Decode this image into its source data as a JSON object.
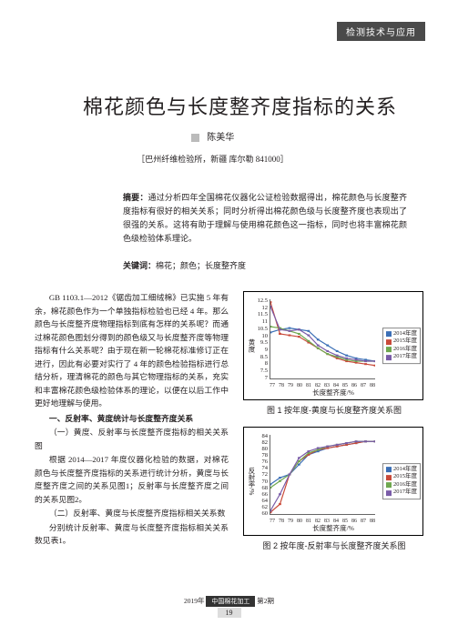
{
  "header_tag": "检测技术与应用",
  "title": "棉花颜色与长度整齐度指标的关系",
  "author": "陈美华",
  "affiliation": "［巴州纤维检验所，新疆  库尔勒  841000］",
  "abstract_label": "摘要：",
  "abstract_text": "通过分析四年全国棉花仪器化公证检验数据得出，棉花颜色与长度整齐度指标有很好的相关关系；同时分析得出棉花颜色级与长度整齐度也表现出了很强的关系。这将有助于理解与使用棉花颜色这一指标，同时也将丰富棉花颜色级检验体系理论。",
  "keywords_label": "关键词：",
  "keywords_text": "棉花；颜色；长度整齐度",
  "para1": "GB 1103.1—2012《锯齿加工细绒棉》已实施 5 年有余，棉花颜色作为一个单独指标检验也已经 4 年。那么颜色与长度整齐度物理指标到底有怎样的关系呢？而通过棉花颜色图划分得到的颜色级又与长度整齐度等物理指标有什么关系呢？由于现在新一轮棉花标准修订正在进行，因此有必要对实行了 4 年的颜色检验指标进行总结分析，理清棉花的颜色与其它物理指标的关系，充实和丰富棉花颜色级检验体系的理论，以便在以后工作中更好地理解与使用。",
  "h1": "一、反射率、黄度统计与长度整齐度关系",
  "para2": "（一）黄度、反射率与长度整齐度指标的相关关系图",
  "para3": "根据 2014—2017 年度仪器化检验的数据，对棉花颜色与长度整齐度指标的关系进行统计分析，黄度与长度整齐度之间的关系见图1；反射率与长度整齐度之间的关系见图2。",
  "para4": "（二）反射率、黄度与长度整齐度指标相关关系数",
  "para5": "分别统计反射率、黄度与长度整齐度指标相关关系数见表1。",
  "chart1": {
    "caption": "图 1  按年度-黄度与长度整齐度关系图",
    "ylabel": "黄度",
    "xlabel": "长度整齐度/%",
    "ylim": [
      7,
      12.5
    ],
    "yticks": [
      "12.5",
      "12",
      "11.5",
      "11",
      "10.5",
      "10",
      "9.5",
      "9",
      "8.5",
      "8",
      "7.5",
      "7"
    ],
    "xticks": [
      "77",
      "78",
      "79",
      "80",
      "81",
      "82",
      "83",
      "84",
      "85",
      "86",
      "87",
      "88"
    ],
    "legend": [
      "2014年度",
      "2015年度",
      "2016年度",
      "2017年度"
    ],
    "colors": [
      "#3b6fb6",
      "#c94a3a",
      "#6fa84f",
      "#7a5ca8"
    ],
    "series": {
      "2014": [
        [
          77,
          10.2
        ],
        [
          78,
          10.4
        ],
        [
          79,
          10.5
        ],
        [
          80,
          10.4
        ],
        [
          81,
          10.3
        ],
        [
          82,
          9.7
        ],
        [
          83,
          9.3
        ],
        [
          84,
          8.9
        ],
        [
          85,
          8.6
        ],
        [
          86,
          8.4
        ],
        [
          87,
          8.3
        ],
        [
          88,
          8.2
        ]
      ],
      "2015": [
        [
          77,
          12.3
        ],
        [
          78,
          10.1
        ],
        [
          79,
          10.0
        ],
        [
          80,
          9.9
        ],
        [
          81,
          9.5
        ],
        [
          82,
          9.1
        ],
        [
          83,
          8.7
        ],
        [
          84,
          8.4
        ],
        [
          85,
          8.2
        ],
        [
          86,
          8.1
        ],
        [
          87,
          8.0
        ],
        [
          88,
          7.9
        ]
      ],
      "2016": [
        [
          77,
          10.6
        ],
        [
          78,
          10.5
        ],
        [
          79,
          10.3
        ],
        [
          80,
          10.1
        ],
        [
          81,
          9.6
        ],
        [
          82,
          9.1
        ],
        [
          83,
          8.7
        ],
        [
          84,
          8.5
        ],
        [
          85,
          8.3
        ],
        [
          86,
          8.2
        ],
        [
          87,
          8.2
        ],
        [
          88,
          8.2
        ]
      ],
      "2017": [
        [
          77,
          12.0
        ],
        [
          78,
          10.4
        ],
        [
          79,
          10.3
        ],
        [
          80,
          10.4
        ],
        [
          81,
          10.0
        ],
        [
          82,
          9.3
        ],
        [
          83,
          8.9
        ],
        [
          84,
          8.6
        ],
        [
          85,
          8.4
        ],
        [
          86,
          8.3
        ],
        [
          87,
          8.2
        ],
        [
          88,
          8.2
        ]
      ]
    }
  },
  "chart2": {
    "caption": "图 2  按年度-反射率与长度整齐度关系图",
    "ylabel": "反射率/%",
    "xlabel": "长度整齐度/%",
    "ylim": [
      60,
      84
    ],
    "yticks": [
      "84",
      "82",
      "80",
      "78",
      "76",
      "74",
      "72",
      "70",
      "68",
      "66",
      "64",
      "62",
      "60"
    ],
    "xticks": [
      "77",
      "78",
      "79",
      "80",
      "81",
      "82",
      "83",
      "84",
      "85",
      "86",
      "87",
      "88"
    ],
    "legend": [
      "2014年度",
      "2015年度",
      "2016年度",
      "2017年度"
    ],
    "colors": [
      "#3b6fb6",
      "#c94a3a",
      "#6fa84f",
      "#7a5ca8"
    ],
    "series": {
      "2014": [
        [
          77,
          69
        ],
        [
          78,
          71
        ],
        [
          79,
          72
        ],
        [
          80,
          75
        ],
        [
          81,
          78
        ],
        [
          82,
          79
        ],
        [
          83,
          80
        ],
        [
          84,
          80.5
        ],
        [
          85,
          81
        ],
        [
          86,
          81.5
        ],
        [
          87,
          82
        ],
        [
          88,
          82
        ]
      ],
      "2015": [
        [
          77,
          60.5
        ],
        [
          78,
          63
        ],
        [
          79,
          72
        ],
        [
          80,
          76
        ],
        [
          81,
          78
        ],
        [
          82,
          79.5
        ],
        [
          83,
          80
        ],
        [
          84,
          80.5
        ],
        [
          85,
          81
        ],
        [
          86,
          81.5
        ],
        [
          87,
          82
        ],
        [
          88,
          82
        ]
      ],
      "2016": [
        [
          77,
          68
        ],
        [
          78,
          70
        ],
        [
          79,
          72
        ],
        [
          80,
          76
        ],
        [
          81,
          78.5
        ],
        [
          82,
          79.5
        ],
        [
          83,
          80.5
        ],
        [
          84,
          81
        ],
        [
          85,
          81.5
        ],
        [
          86,
          82
        ],
        [
          87,
          82
        ],
        [
          88,
          82
        ]
      ],
      "2017": [
        [
          77,
          61
        ],
        [
          78,
          66
        ],
        [
          79,
          72
        ],
        [
          80,
          77
        ],
        [
          81,
          79
        ],
        [
          82,
          80
        ],
        [
          83,
          80.5
        ],
        [
          84,
          81
        ],
        [
          85,
          81.5
        ],
        [
          86,
          82
        ],
        [
          87,
          82
        ],
        [
          88,
          82
        ]
      ]
    }
  },
  "footer_year": "2019年",
  "footer_journal": "中国棉花加工",
  "footer_issue": "第2期",
  "page_num": "19"
}
